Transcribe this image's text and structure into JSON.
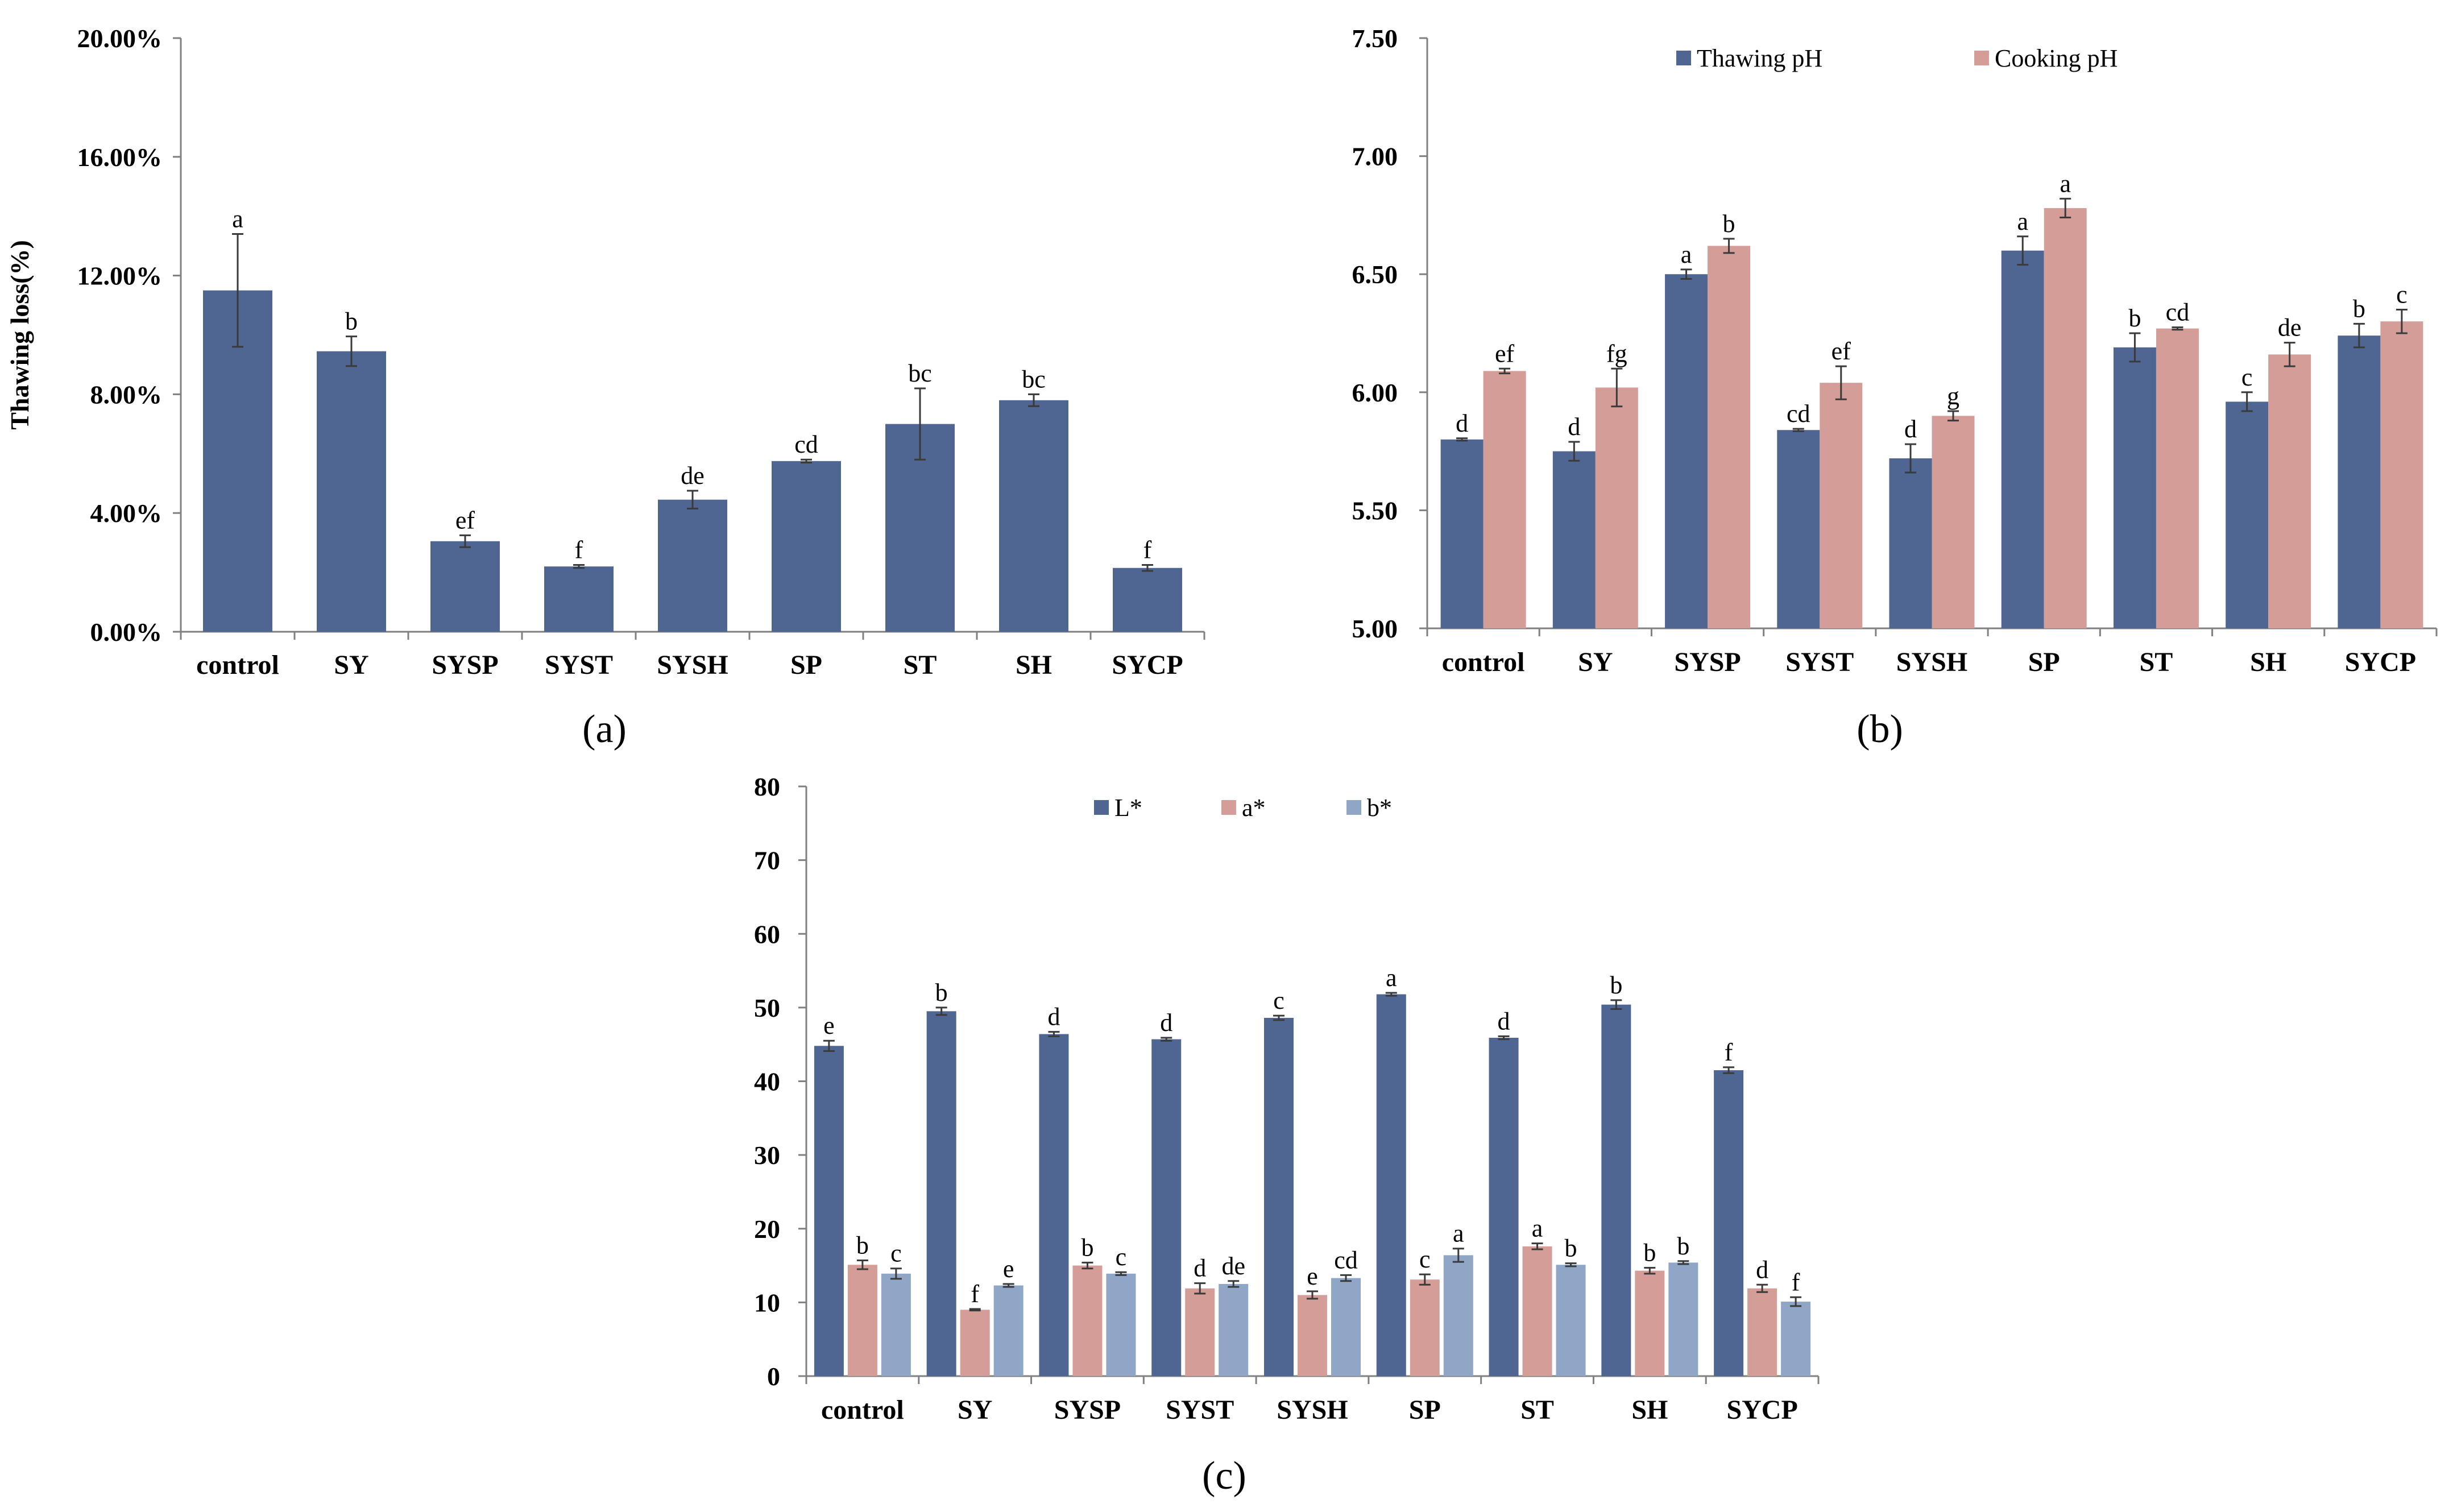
{
  "chart_data": [
    {
      "id": "a",
      "type": "bar",
      "panel_label": "(a)",
      "title": "",
      "xlabel": "",
      "ylabel": "Thawing loss(%)",
      "ylim": [
        0,
        20
      ],
      "yticks": [
        "0.00%",
        "4.00%",
        "8.00%",
        "12.00%",
        "16.00%",
        "20.00%"
      ],
      "categories": [
        "control",
        "SY",
        "SYSP",
        "SYST",
        "SYSH",
        "SP",
        "ST",
        "SH",
        "SYCP"
      ],
      "legend": "none",
      "grid": false,
      "series": [
        {
          "name": "",
          "color": "#4f6693",
          "values": [
            11.5,
            9.45,
            3.05,
            2.2,
            4.45,
            5.75,
            7.0,
            7.8,
            2.15
          ],
          "errors": [
            1.9,
            0.5,
            0.2,
            0.05,
            0.3,
            0.05,
            1.2,
            0.2,
            0.1
          ],
          "labels": [
            "a",
            "b",
            "ef",
            "f",
            "de",
            "cd",
            "bc",
            "bc",
            "f"
          ]
        }
      ]
    },
    {
      "id": "b",
      "type": "bar",
      "panel_label": "(b)",
      "title": "",
      "xlabel": "",
      "ylabel": "",
      "ylim": [
        5.0,
        7.5
      ],
      "yticks": [
        "5.00",
        "5.50",
        "6.00",
        "6.50",
        "7.00",
        "7.50"
      ],
      "categories": [
        "control",
        "SY",
        "SYSP",
        "SYST",
        "SYSH",
        "SP",
        "ST",
        "SH",
        "SYCP"
      ],
      "legend": "top",
      "grid": false,
      "series": [
        {
          "name": "Thawing pH",
          "color": "#4f6693",
          "values": [
            5.8,
            5.75,
            6.5,
            5.84,
            5.72,
            6.6,
            6.19,
            5.96,
            6.24
          ],
          "errors": [
            0.005,
            0.04,
            0.02,
            0.005,
            0.06,
            0.06,
            0.06,
            0.04,
            0.05
          ],
          "labels": [
            "d",
            "d",
            "a",
            "cd",
            "d",
            "a",
            "b",
            "c",
            "b"
          ]
        },
        {
          "name": "Cooking pH",
          "color": "#d59d97",
          "values": [
            6.09,
            6.02,
            6.62,
            6.04,
            5.9,
            6.78,
            6.27,
            6.16,
            6.3
          ],
          "errors": [
            0.01,
            0.08,
            0.03,
            0.07,
            0.02,
            0.04,
            0.005,
            0.05,
            0.05
          ],
          "labels": [
            "ef",
            "fg",
            "b",
            "ef",
            "g",
            "a",
            "cd",
            "de",
            "c"
          ]
        }
      ]
    },
    {
      "id": "c",
      "type": "bar",
      "panel_label": "(c)",
      "title": "",
      "xlabel": "",
      "ylabel": "",
      "ylim": [
        0,
        80
      ],
      "yticks": [
        "0",
        "10",
        "20",
        "30",
        "40",
        "50",
        "60",
        "70",
        "80"
      ],
      "categories": [
        "control",
        "SY",
        "SYSP",
        "SYST",
        "SYSH",
        "SP",
        "ST",
        "SH",
        "SYCP"
      ],
      "legend": "top",
      "grid": false,
      "series": [
        {
          "name": "L*",
          "color": "#4f6693",
          "values": [
            44.8,
            49.5,
            46.4,
            45.7,
            48.6,
            51.8,
            45.9,
            50.4,
            41.5
          ],
          "errors": [
            0.7,
            0.5,
            0.3,
            0.2,
            0.3,
            0.2,
            0.2,
            0.6,
            0.4
          ],
          "labels": [
            "e",
            "b",
            "d",
            "d",
            "c",
            "a",
            "d",
            "b",
            "f"
          ]
        },
        {
          "name": "a*",
          "color": "#d59d97",
          "values": [
            15.1,
            9.0,
            15.0,
            11.9,
            11.0,
            13.1,
            17.6,
            14.3,
            11.9
          ],
          "errors": [
            0.6,
            0.1,
            0.4,
            0.7,
            0.5,
            0.7,
            0.4,
            0.4,
            0.5
          ],
          "labels": [
            "b",
            "f",
            "b",
            "d",
            "e",
            "c",
            "a",
            "b",
            "d"
          ]
        },
        {
          "name": "b*",
          "color": "#8fa6c6",
          "values": [
            13.9,
            12.3,
            13.9,
            12.5,
            13.3,
            16.4,
            15.1,
            15.4,
            10.1
          ],
          "errors": [
            0.7,
            0.2,
            0.2,
            0.4,
            0.4,
            0.9,
            0.2,
            0.2,
            0.6
          ],
          "labels": [
            "c",
            "e",
            "c",
            "de",
            "cd",
            "a",
            "b",
            "b",
            "f"
          ]
        }
      ]
    }
  ]
}
